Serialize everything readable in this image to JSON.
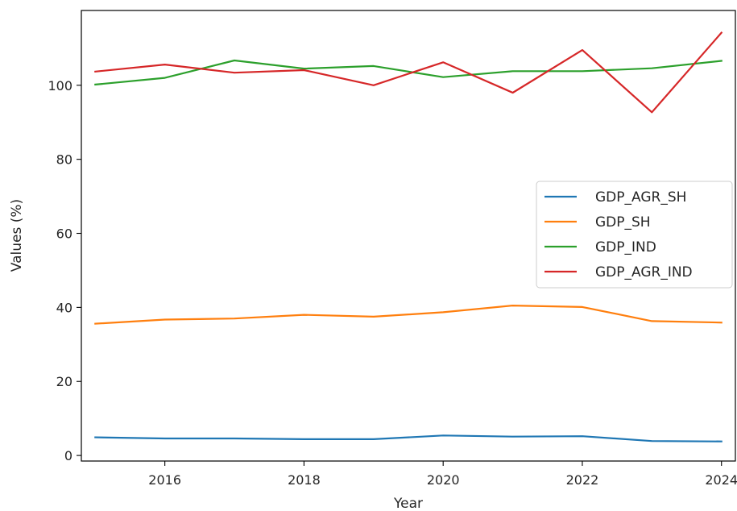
{
  "chart_data": {
    "type": "line",
    "title": "",
    "xlabel": "Year",
    "ylabel": "Values (%)",
    "xlim": [
      2014.8,
      2024.2
    ],
    "ylim": [
      -1.5,
      120.2
    ],
    "grid": false,
    "legend_placement": "center-right",
    "x": [
      2015,
      2016,
      2017,
      2018,
      2019,
      2020,
      2021,
      2022,
      2023,
      2024
    ],
    "x_ticks": [
      "2016",
      "2018",
      "2020",
      "2022",
      "2024"
    ],
    "y_ticks": [
      "0",
      "20",
      "40",
      "60",
      "80",
      "100"
    ],
    "series": [
      {
        "name": "GDP_AGR_SH",
        "color": "#1f77b4",
        "values": [
          4.9,
          4.6,
          4.6,
          4.4,
          4.4,
          5.4,
          5.1,
          5.2,
          3.9,
          3.8
        ]
      },
      {
        "name": "GDP_SH",
        "color": "#ff7f0e",
        "values": [
          35.6,
          36.7,
          37.0,
          38.0,
          37.5,
          38.7,
          40.5,
          40.1,
          36.3,
          35.9
        ]
      },
      {
        "name": "GDP_IND",
        "color": "#2ca02c",
        "values": [
          100.2,
          102.0,
          106.7,
          104.5,
          105.2,
          102.2,
          103.8,
          103.8,
          104.6,
          106.6
        ]
      },
      {
        "name": "GDP_AGR_IND",
        "color": "#d62728",
        "values": [
          103.7,
          105.6,
          103.4,
          104.1,
          100.0,
          106.2,
          98.0,
          109.5,
          92.7,
          114.2
        ]
      }
    ]
  }
}
